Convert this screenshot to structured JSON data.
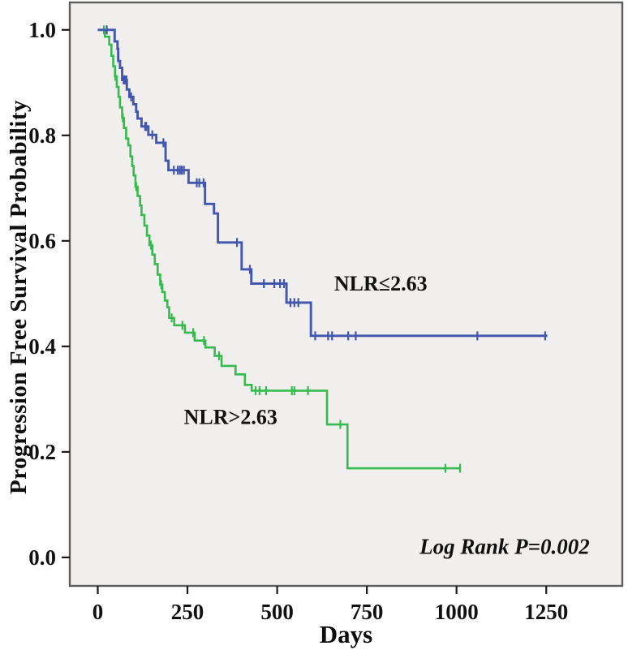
{
  "chart_data": {
    "type": "line",
    "subtype": "kaplan-meier-step-survival",
    "title": "",
    "xlabel": "Days",
    "ylabel": "Progression Free Survival Probability",
    "x_ticks": [
      0,
      250,
      500,
      750,
      1000,
      1250
    ],
    "y_ticks": [
      0.0,
      0.2,
      0.4,
      0.6,
      0.8,
      1.0
    ],
    "xlim": [
      -78,
      1462
    ],
    "ylim": [
      -0.054,
      1.052
    ],
    "grid": false,
    "legend_position": "none (inline text labels)",
    "colors": {
      "plot_background": "#f0efed",
      "plot_border": "#5d5d5d",
      "tick_color": "#1a1a1a",
      "text_color": "#111111",
      "series_low_nlr": "#4156ac",
      "series_high_nlr": "#35bb4d"
    },
    "annotations": [
      {
        "text": "NLR≤2.63",
        "day": 659,
        "prob": 0.506,
        "anchor": "start",
        "style": "bold",
        "font_size": 26
      },
      {
        "text": "NLR>2.63",
        "day": 240,
        "prob": 0.253,
        "anchor": "start",
        "style": "bold",
        "font_size": 26
      },
      {
        "text": "Log Rank P=0.002",
        "day": 1371,
        "prob": 0.007,
        "anchor": "end",
        "style": "bold-italic",
        "font_size": 27
      }
    ],
    "p_value": "Log Rank P=0.002",
    "series": [
      {
        "name": "NLR≤2.63",
        "color_key": "series_low_nlr",
        "start_prob": 1.0,
        "steps": [
          [
            47,
            0.978
          ],
          [
            55,
            0.964
          ],
          [
            57,
            0.941
          ],
          [
            62,
            0.928
          ],
          [
            68,
            0.905
          ],
          [
            81,
            0.887
          ],
          [
            88,
            0.873
          ],
          [
            99,
            0.859
          ],
          [
            107,
            0.845
          ],
          [
            111,
            0.832
          ],
          [
            122,
            0.817
          ],
          [
            141,
            0.801
          ],
          [
            163,
            0.786
          ],
          [
            189,
            0.752
          ],
          [
            197,
            0.734
          ],
          [
            253,
            0.71
          ],
          [
            299,
            0.67
          ],
          [
            324,
            0.652
          ],
          [
            335,
            0.597
          ],
          [
            401,
            0.546
          ],
          [
            428,
            0.519
          ],
          [
            526,
            0.483
          ],
          [
            594,
            0.42
          ]
        ],
        "end_day": 1253,
        "censor_days": [
          25,
          72,
          76,
          80,
          93,
          132,
          135,
          152,
          183,
          212,
          223,
          229,
          234,
          240,
          276,
          283,
          295,
          388,
          424,
          463,
          492,
          508,
          519,
          537,
          548,
          559,
          606,
          642,
          653,
          698,
          719,
          1058,
          1247
        ]
      },
      {
        "name": "NLR>2.63",
        "color_key": "series_high_nlr",
        "start_prob": 1.0,
        "steps": [
          [
            20,
            0.987
          ],
          [
            32,
            0.972
          ],
          [
            38,
            0.951
          ],
          [
            43,
            0.931
          ],
          [
            48,
            0.912
          ],
          [
            53,
            0.892
          ],
          [
            58,
            0.873
          ],
          [
            62,
            0.853
          ],
          [
            68,
            0.833
          ],
          [
            73,
            0.814
          ],
          [
            79,
            0.794
          ],
          [
            85,
            0.781
          ],
          [
            91,
            0.76
          ],
          [
            96,
            0.742
          ],
          [
            100,
            0.724
          ],
          [
            105,
            0.703
          ],
          [
            111,
            0.685
          ],
          [
            118,
            0.667
          ],
          [
            122,
            0.649
          ],
          [
            130,
            0.629
          ],
          [
            137,
            0.61
          ],
          [
            144,
            0.592
          ],
          [
            152,
            0.574
          ],
          [
            159,
            0.556
          ],
          [
            167,
            0.536
          ],
          [
            174,
            0.517
          ],
          [
            180,
            0.503
          ],
          [
            187,
            0.487
          ],
          [
            194,
            0.474
          ],
          [
            199,
            0.454
          ],
          [
            213,
            0.44
          ],
          [
            243,
            0.426
          ],
          [
            270,
            0.411
          ],
          [
            300,
            0.398
          ],
          [
            326,
            0.382
          ],
          [
            345,
            0.363
          ],
          [
            384,
            0.347
          ],
          [
            410,
            0.327
          ],
          [
            429,
            0.316
          ],
          [
            639,
            0.252
          ],
          [
            696,
            0.169
          ]
        ],
        "end_day": 1010,
        "censor_days": [
          17,
          49,
          70,
          107,
          148,
          177,
          206,
          236,
          266,
          296,
          338,
          440,
          451,
          469,
          541,
          548,
          586,
          676,
          969,
          1010
        ]
      }
    ]
  }
}
